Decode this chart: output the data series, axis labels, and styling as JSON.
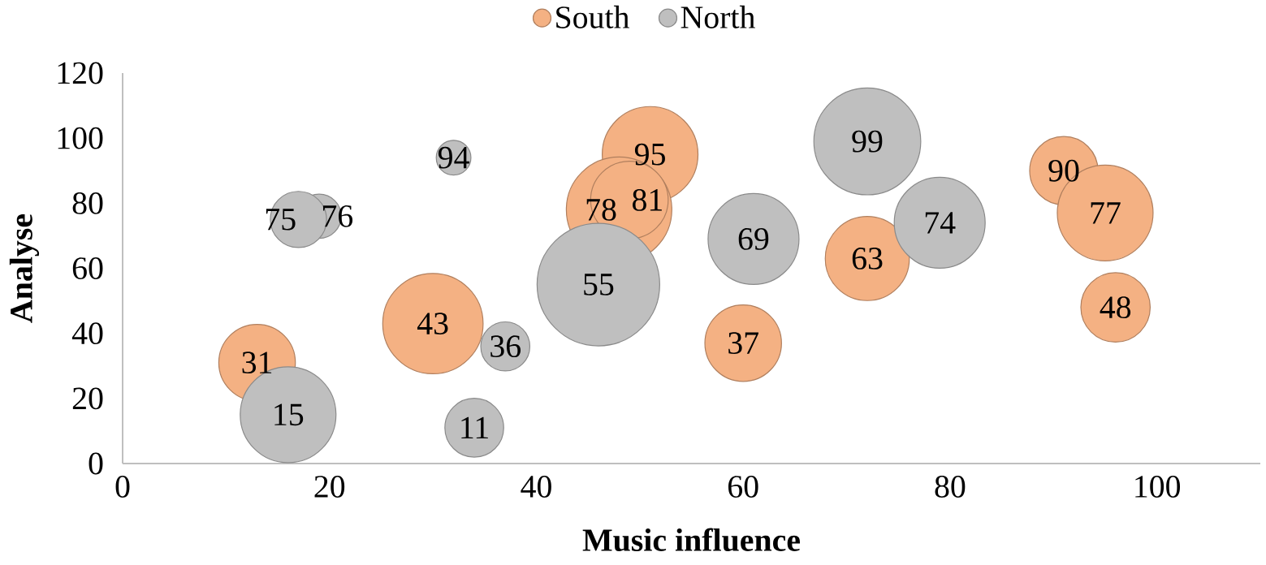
{
  "chart_data": {
    "type": "bubble",
    "xlabel": "Music influence",
    "ylabel": "Analyse",
    "xlim": [
      0,
      110
    ],
    "ylim": [
      0,
      120
    ],
    "xticks": [
      0,
      20,
      40,
      60,
      80,
      100
    ],
    "yticks": [
      0,
      20,
      40,
      60,
      80,
      100,
      120
    ],
    "legend": "top",
    "data_labels": true,
    "series": [
      {
        "name": "South",
        "color": "#f4b183",
        "x": [
          13,
          30,
          51,
          48,
          49,
          60,
          72,
          91,
          95,
          96
        ],
        "values": [
          31,
          43,
          95,
          78,
          81,
          37,
          63,
          90,
          77,
          48
        ],
        "sizes": [
          0.39,
          0.67,
          0.61,
          0.74,
          0.4,
          0.39,
          0.47,
          0.31,
          0.61,
          0.32
        ]
      },
      {
        "name": "North",
        "color": "#bfbfbf",
        "x": [
          16,
          19,
          17,
          32,
          37,
          34,
          46,
          61,
          72,
          79
        ],
        "values": [
          15,
          76,
          75,
          94,
          36,
          11,
          55,
          69,
          99,
          74
        ],
        "sizes": [
          0.61,
          0.13,
          0.21,
          0.08,
          0.16,
          0.23,
          1,
          0.55,
          0.76,
          0.55
        ]
      }
    ]
  }
}
